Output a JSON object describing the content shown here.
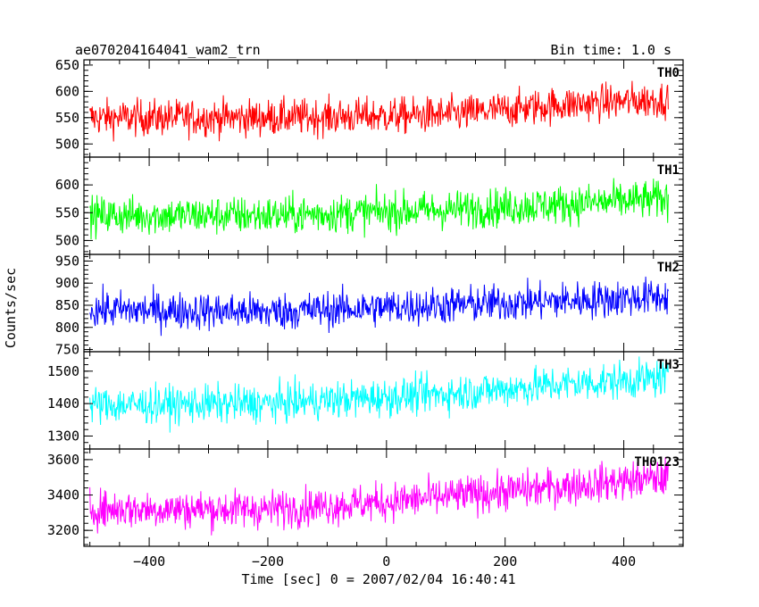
{
  "title_left": "ae070204164041_wam2_trn",
  "title_right": "Bin time: 1.0 s",
  "xlabel": "Time [sec] 0 = 2007/02/04 16:40:41",
  "ylabel": "Counts/sec",
  "chart_data": {
    "type": "line",
    "x_range": [
      -510,
      500
    ],
    "x_ticks": [
      -400,
      -200,
      0,
      200,
      400
    ],
    "data_x_range": [
      -500,
      475
    ],
    "bin_time_s": 1.0,
    "panels": [
      {
        "name": "TH0",
        "color": "#ff0000",
        "ylim": [
          475,
          660
        ],
        "y_ticks": [
          500,
          550,
          600,
          650
        ],
        "trend": [
          [
            -500,
            550
          ],
          [
            -200,
            550
          ],
          [
            100,
            555
          ],
          [
            300,
            575
          ],
          [
            475,
            585
          ]
        ],
        "noise_amplitude": 45
      },
      {
        "name": "TH1",
        "color": "#00ff00",
        "ylim": [
          475,
          650
        ],
        "y_ticks": [
          500,
          550,
          600
        ],
        "trend": [
          [
            -500,
            545
          ],
          [
            -200,
            545
          ],
          [
            100,
            555
          ],
          [
            300,
            565
          ],
          [
            475,
            575
          ]
        ],
        "noise_amplitude": 45
      },
      {
        "name": "TH2",
        "color": "#0000ff",
        "ylim": [
          745,
          965
        ],
        "y_ticks": [
          750,
          800,
          850,
          900,
          950
        ],
        "trend": [
          [
            -500,
            840
          ],
          [
            -200,
            835
          ],
          [
            100,
            850
          ],
          [
            300,
            860
          ],
          [
            475,
            870
          ]
        ],
        "noise_amplitude": 55
      },
      {
        "name": "TH3",
        "color": "#00ffff",
        "ylim": [
          1260,
          1560
        ],
        "y_ticks": [
          1300,
          1400,
          1500
        ],
        "trend": [
          [
            -500,
            1395
          ],
          [
            -200,
            1400
          ],
          [
            100,
            1430
          ],
          [
            300,
            1460
          ],
          [
            475,
            1480
          ]
        ],
        "noise_amplitude": 75
      },
      {
        "name": "TH0123",
        "color": "#ff00ff",
        "ylim": [
          3110,
          3660
        ],
        "y_ticks": [
          3200,
          3400,
          3600
        ],
        "trend": [
          [
            -500,
            3320
          ],
          [
            -200,
            3320
          ],
          [
            0,
            3360
          ],
          [
            200,
            3420
          ],
          [
            475,
            3500
          ]
        ],
        "noise_amplitude": 140
      }
    ]
  }
}
